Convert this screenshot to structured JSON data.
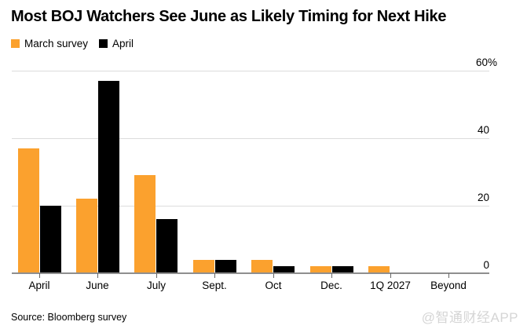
{
  "title": "Most BOJ Watchers See June as Likely Timing for Next Hike",
  "source": "Source: Bloomberg survey",
  "watermark": "@智通财经APP",
  "chart_data": {
    "type": "bar",
    "title": "Most BOJ Watchers See June as Likely Timing for Next Hike",
    "categories": [
      "April",
      "June",
      "July",
      "Sept.",
      "Oct",
      "Dec.",
      "1Q 2027",
      "Beyond"
    ],
    "series": [
      {
        "name": "March survey",
        "color": "#FBA12E",
        "values": [
          37,
          22,
          29,
          4,
          4,
          2,
          2,
          0
        ]
      },
      {
        "name": "April",
        "color": "#000000",
        "values": [
          20,
          57,
          16,
          4,
          2,
          2,
          0,
          0
        ]
      }
    ],
    "xlabel": "",
    "ylabel": "%",
    "ylim": [
      0,
      60
    ],
    "yticks": [
      {
        "value": 60,
        "label": "60%"
      },
      {
        "value": 40,
        "label": "40"
      },
      {
        "value": 20,
        "label": "20"
      },
      {
        "value": 0,
        "label": "0"
      }
    ],
    "grid": true,
    "legend_position": "top-left",
    "y_axis_side": "right"
  },
  "colors": {
    "grid": "#dcdcdc",
    "baseline": "#8f8f8f",
    "tick": "#666666",
    "text": "#000000",
    "watermark": "#d5d5d5",
    "background": "#ffffff"
  }
}
